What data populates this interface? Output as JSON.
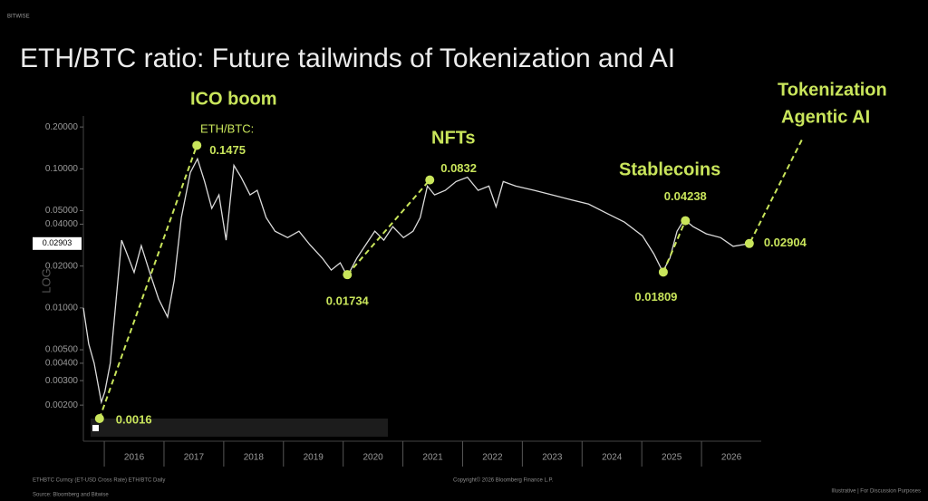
{
  "brand": "BITWISE",
  "chart_data": {
    "type": "line",
    "title": "ETH/BTC ratio: Future tailwinds of Tokenization and AI",
    "y_label": "LOG",
    "log_scale": true,
    "color": "#dcdcdc",
    "accent_color": "#c9e55b",
    "xlim": [
      2015.65,
      2027
    ],
    "xticks": [
      2016,
      2017,
      2018,
      2019,
      2020,
      2021,
      2022,
      2023,
      2024,
      2025,
      2026
    ],
    "ylim": [
      0.0011,
      0.24
    ],
    "yticks": [
      {
        "value": 0.2,
        "label": "0.20000"
      },
      {
        "value": 0.1,
        "label": "0.10000"
      },
      {
        "value": 0.05,
        "label": "0.05000"
      },
      {
        "value": 0.04,
        "label": "0.04000"
      },
      {
        "value": 0.02,
        "label": "0.02000"
      },
      {
        "value": 0.01,
        "label": "0.01000"
      },
      {
        "value": 0.005,
        "label": "0.00500"
      },
      {
        "value": 0.004,
        "label": "0.00400"
      },
      {
        "value": 0.003,
        "label": "0.00300"
      },
      {
        "value": 0.002,
        "label": "0.00200"
      }
    ],
    "last_value": 0.02903,
    "x": [
      2015.65,
      2015.74,
      2015.83,
      2015.95,
      2016.01,
      2016.1,
      2016.2,
      2016.29,
      2016.38,
      2016.5,
      2016.62,
      2016.76,
      2016.91,
      2017.06,
      2017.17,
      2017.29,
      2017.44,
      2017.56,
      2017.68,
      2017.8,
      2017.92,
      2018.04,
      2018.17,
      2018.29,
      2018.44,
      2018.56,
      2018.71,
      2018.86,
      2019.07,
      2019.26,
      2019.44,
      2019.65,
      2019.8,
      2019.95,
      2020.07,
      2020.23,
      2020.38,
      2020.53,
      2020.68,
      2020.83,
      2021.01,
      2021.17,
      2021.29,
      2021.41,
      2021.53,
      2021.71,
      2021.89,
      2022.08,
      2022.26,
      2022.44,
      2022.56,
      2022.68,
      2022.89,
      2023.2,
      2023.5,
      2023.8,
      2024.11,
      2024.41,
      2024.71,
      2025.01,
      2025.2,
      2025.35,
      2025.47,
      2025.59,
      2025.71,
      2025.86,
      2026.08,
      2026.32,
      2026.53,
      2026.8
    ],
    "values": [
      0.01,
      0.0055,
      0.004,
      0.0021,
      0.0025,
      0.004,
      0.0116,
      0.0307,
      0.0245,
      0.018,
      0.028,
      0.018,
      0.0116,
      0.0086,
      0.0157,
      0.0446,
      0.094,
      0.118,
      0.081,
      0.052,
      0.065,
      0.0307,
      0.106,
      0.087,
      0.065,
      0.07,
      0.0446,
      0.0356,
      0.032,
      0.0356,
      0.0285,
      0.0228,
      0.0187,
      0.0211,
      0.0169,
      0.0228,
      0.0285,
      0.0356,
      0.0307,
      0.0384,
      0.032,
      0.0356,
      0.0446,
      0.0752,
      0.065,
      0.07,
      0.081,
      0.087,
      0.07,
      0.0752,
      0.0534,
      0.081,
      0.0752,
      0.07,
      0.065,
      0.0602,
      0.0558,
      0.048,
      0.0414,
      0.033,
      0.0245,
      0.0182,
      0.0228,
      0.0356,
      0.0433,
      0.0384,
      0.0341,
      0.032,
      0.0277,
      0.029
    ],
    "annotations": [
      {
        "x": 2015.92,
        "value": 0.0016
      },
      {
        "x": 2017.55,
        "value": 0.1475
      },
      {
        "x": 2020.07,
        "value": 0.01734
      },
      {
        "x": 2021.45,
        "value": 0.0832
      },
      {
        "x": 2025.36,
        "value": 0.01809
      },
      {
        "x": 2025.73,
        "value": 0.04238
      },
      {
        "x": 2026.8,
        "value": 0.02904
      }
    ],
    "callouts": [
      "ICO boom",
      "ETH/BTC:",
      "NFTs",
      "Stablecoins",
      "Tokenization",
      "Agentic AI"
    ],
    "footer": [
      "ETHBTC Curncy (ET-USD Cross Rate) ETH/BTC Daily",
      "Copyright© 2026 Bloomberg Finance L.P.",
      "Source: Bloomberg and Bitwise",
      "Illustrative | For Discussion Purposes"
    ]
  }
}
